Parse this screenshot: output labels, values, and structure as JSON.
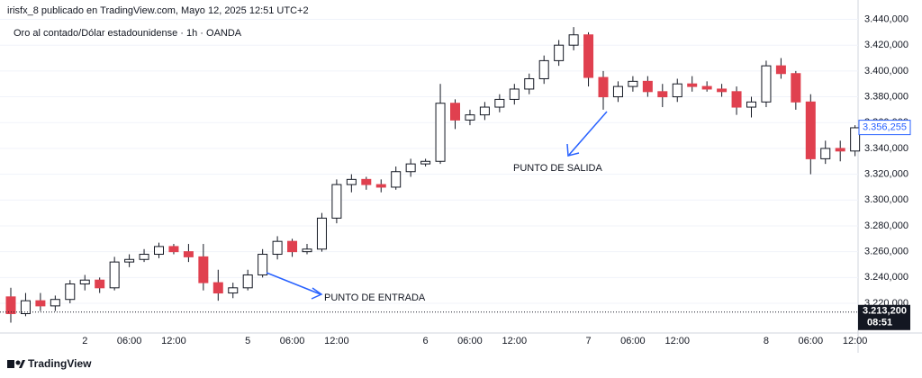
{
  "chart_data": {
    "type": "candlestick",
    "title": "irisfx_8 publicado en TradingView.com, Mayo 12, 2025 12:51 UTC+2",
    "subtitle": "Oro al contado/Dólar estadounidense · 1h · OANDA",
    "brand": "TradingView",
    "up_color": "#ffffff",
    "down_color": "#e0404f",
    "border_color": "#131722",
    "categories": [
      null,
      null,
      null,
      null,
      null,
      "2",
      null,
      null,
      "06:00",
      null,
      null,
      "12:00",
      null,
      null,
      null,
      null,
      "5",
      null,
      null,
      "06:00",
      null,
      null,
      "12:00",
      null,
      null,
      null,
      null,
      null,
      "6",
      null,
      null,
      "06:00",
      null,
      null,
      "12:00",
      null,
      null,
      null,
      null,
      "7",
      null,
      null,
      "06:00",
      null,
      null,
      "12:00",
      null,
      null,
      null,
      null,
      null,
      "8",
      null,
      null,
      "06:00",
      null,
      null,
      "12:00"
    ],
    "open": [
      3.225,
      3.212,
      3.222,
      3.218,
      3.223,
      3.235,
      3.238,
      3.232,
      3.252,
      3.254,
      3.258,
      3.264,
      3.26,
      3.256,
      3.236,
      3.228,
      3.232,
      3.242,
      3.258,
      3.268,
      3.26,
      3.262,
      3.286,
      3.312,
      3.316,
      3.312,
      3.31,
      3.322,
      3.328,
      3.33,
      3.375,
      3.362,
      3.366,
      3.372,
      3.378,
      3.386,
      3.394,
      3.408,
      3.42,
      3.428,
      3.395,
      3.38,
      3.388,
      3.392,
      3.384,
      3.38,
      3.39,
      3.388,
      3.386,
      3.384,
      3.372,
      3.376,
      3.404,
      3.398,
      3.376,
      3.332,
      3.34,
      3.338
    ],
    "high": [
      3.232,
      3.228,
      3.228,
      3.226,
      3.238,
      3.242,
      3.24,
      3.256,
      3.258,
      3.262,
      3.267,
      3.266,
      3.266,
      3.266,
      3.246,
      3.236,
      3.246,
      3.262,
      3.272,
      3.27,
      3.266,
      3.29,
      3.316,
      3.32,
      3.318,
      3.316,
      3.326,
      3.332,
      3.332,
      3.39,
      3.378,
      3.37,
      3.376,
      3.382,
      3.39,
      3.398,
      3.412,
      3.424,
      3.434,
      3.43,
      3.4,
      3.392,
      3.396,
      3.396,
      3.39,
      3.394,
      3.396,
      3.392,
      3.39,
      3.388,
      3.38,
      3.408,
      3.41,
      3.4,
      3.382,
      3.346,
      3.346,
      3.358
    ],
    "low": [
      3.205,
      3.21,
      3.214,
      3.214,
      3.22,
      3.23,
      3.228,
      3.23,
      3.248,
      3.252,
      3.255,
      3.258,
      3.252,
      3.23,
      3.222,
      3.224,
      3.23,
      3.24,
      3.254,
      3.256,
      3.258,
      3.26,
      3.282,
      3.306,
      3.308,
      3.306,
      3.308,
      3.318,
      3.326,
      3.328,
      3.355,
      3.358,
      3.362,
      3.368,
      3.374,
      3.382,
      3.39,
      3.404,
      3.416,
      3.388,
      3.37,
      3.376,
      3.384,
      3.38,
      3.372,
      3.376,
      3.384,
      3.384,
      3.38,
      3.366,
      3.364,
      3.372,
      3.394,
      3.37,
      3.32,
      3.328,
      3.33,
      3.334
    ],
    "close": [
      3.212,
      3.222,
      3.218,
      3.223,
      3.235,
      3.238,
      3.232,
      3.252,
      3.254,
      3.258,
      3.264,
      3.26,
      3.256,
      3.236,
      3.228,
      3.232,
      3.242,
      3.258,
      3.268,
      3.26,
      3.262,
      3.286,
      3.312,
      3.316,
      3.312,
      3.31,
      3.322,
      3.328,
      3.33,
      3.375,
      3.362,
      3.366,
      3.372,
      3.378,
      3.386,
      3.394,
      3.408,
      3.42,
      3.428,
      3.395,
      3.38,
      3.388,
      3.392,
      3.384,
      3.38,
      3.39,
      3.388,
      3.386,
      3.384,
      3.372,
      3.376,
      3.404,
      3.398,
      3.376,
      3.332,
      3.34,
      3.338,
      3.356
    ],
    "ylim": [
      3.197,
      3.455
    ],
    "yticks": [
      {
        "value": 3.22,
        "label": "3.220,000"
      },
      {
        "value": 3.24,
        "label": "3.240,000"
      },
      {
        "value": 3.26,
        "label": "3.260,000"
      },
      {
        "value": 3.28,
        "label": "3.280,000"
      },
      {
        "value": 3.3,
        "label": "3.300,000"
      },
      {
        "value": 3.32,
        "label": "3.320,000"
      },
      {
        "value": 3.34,
        "label": "3.340,000"
      },
      {
        "value": 3.36,
        "label": "3.360,000"
      },
      {
        "value": 3.38,
        "label": "3.380,000"
      },
      {
        "value": 3.4,
        "label": "3.400,000"
      },
      {
        "value": 3.42,
        "label": "3.420,000"
      },
      {
        "value": 3.44,
        "label": "3.440,000"
      }
    ],
    "price_lines": [
      {
        "value": 3.356255,
        "label": "3.356,255",
        "color": "#2962ff"
      },
      {
        "value": 3.2132,
        "label": "3.213,200",
        "time": "08:51",
        "color": "#131722"
      }
    ],
    "annotations": [
      "PUNTO DE ENTRADA",
      "PUNTO DE SALIDA"
    ]
  }
}
